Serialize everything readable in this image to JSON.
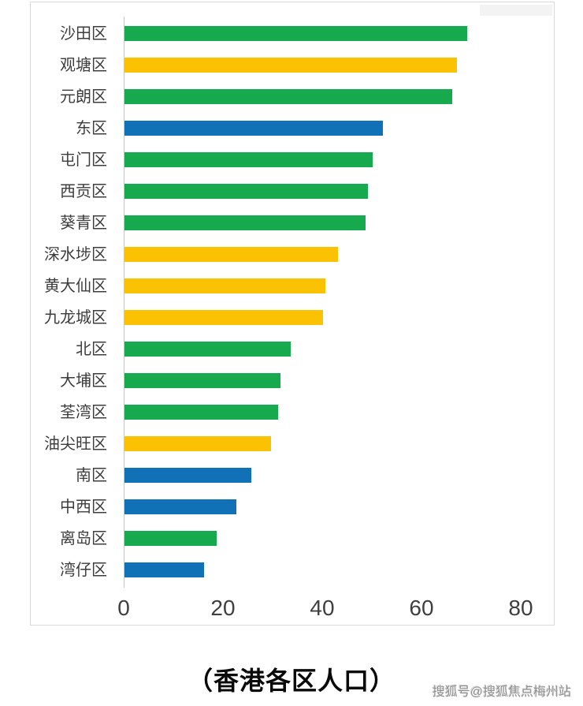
{
  "chart_data": {
    "type": "bar",
    "orientation": "horizontal",
    "title": "（香港各区人口）",
    "categories": [
      "沙田区",
      "观塘区",
      "元朗区",
      "东区",
      "屯门区",
      "西贡区",
      "葵青区",
      "深水埗区",
      "黄大仙区",
      "九龙城区",
      "北区",
      "大埔区",
      "荃湾区",
      "油尖旺区",
      "南区",
      "中西区",
      "离岛区",
      "湾仔区"
    ],
    "values": [
      69,
      67,
      66,
      52,
      50,
      49,
      48.5,
      43,
      40.5,
      40,
      33.5,
      31.5,
      31,
      29.5,
      25.5,
      22.5,
      18.5,
      16
    ],
    "bar_color_keys": [
      "green",
      "yellow",
      "green",
      "blue",
      "green",
      "green",
      "green",
      "yellow",
      "yellow",
      "yellow",
      "green",
      "green",
      "green",
      "yellow",
      "blue",
      "blue",
      "green",
      "blue"
    ],
    "color_map": {
      "green": "#17A94D",
      "yellow": "#FBC103",
      "blue": "#1171B7"
    },
    "xlim": [
      0,
      80
    ],
    "x_ticks": [
      0,
      20,
      40,
      60,
      80
    ],
    "grid": false,
    "legend": false,
    "axis_line_color": "#c6c6c6",
    "category_label_color": "#3d3d3d",
    "tick_label_color": "#3f3f3f"
  },
  "caption": {
    "text": "（香港各区人口）"
  },
  "watermark": {
    "text": "搜狐号@搜狐焦点梅州站"
  }
}
